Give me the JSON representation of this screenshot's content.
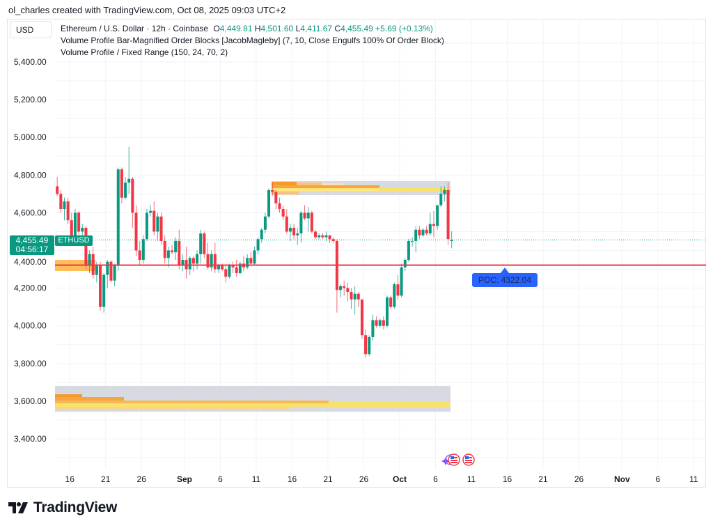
{
  "credit": "ol_charles created with TradingView.com, Oct 08, 2025 09:03 UTC+2",
  "currency_button": "USD",
  "legend": {
    "symbol": "Ethereum / U.S. Dollar · 12h · Coinbase",
    "o_label": "O",
    "o": "4,449.81",
    "h_label": "H",
    "h": "4,501.60",
    "l_label": "L",
    "l": "4,411.67",
    "c_label": "C",
    "c": "4,455.49",
    "change": "+5.69 (+0.13%)",
    "indicator1": "Volume Profile Bar-Magnified Order Blocks [JacobMagleby] (7, 10, Close Engulfs 100% Of Order Block)",
    "indicator2": "Volume Profile / Fixed Range (150, 24, 70, 2)"
  },
  "price_label": {
    "price": "4,455.49",
    "countdown": "04:56:17",
    "symbol": "ETHUSD"
  },
  "poc_label": "POC: 4322.04",
  "logo_text": "TradingView",
  "colors": {
    "up": "#089981",
    "down": "#f23645",
    "poc": "#f23645",
    "poc_label": "#2962ff",
    "zone": "#d1d4dc",
    "profile_orange": "#f59a2a",
    "profile_yellow": "#f7e26b"
  },
  "icons": [
    "sparkle-icon",
    "us-flag-event-icon",
    "us-flag-event-icon"
  ],
  "chart_data": {
    "type": "candlestick",
    "interval": "12h",
    "start": "2025-08-14",
    "yticks": [
      "5,400.00",
      "5,200.00",
      "5,000.00",
      "4,800.00",
      "4,600.00",
      "4,400.00",
      "4,200.00",
      "4,000.00",
      "3,800.00",
      "3,600.00",
      "3,400.00"
    ],
    "ytick_values": [
      5400,
      5200,
      5000,
      4800,
      4600,
      4400,
      4200,
      4000,
      3800,
      3600,
      3400
    ],
    "ylim": [
      3270,
      5500
    ],
    "xticks": [
      {
        "label": "16",
        "date": "2025-08-16"
      },
      {
        "label": "21",
        "date": "2025-08-21"
      },
      {
        "label": "26",
        "date": "2025-08-26"
      },
      {
        "label": "Sep",
        "date": "2025-09-01",
        "bold": true
      },
      {
        "label": "6",
        "date": "2025-09-06"
      },
      {
        "label": "11",
        "date": "2025-09-11"
      },
      {
        "label": "16",
        "date": "2025-09-16"
      },
      {
        "label": "21",
        "date": "2025-09-21"
      },
      {
        "label": "26",
        "date": "2025-09-26"
      },
      {
        "label": "Oct",
        "date": "2025-10-01",
        "bold": true
      },
      {
        "label": "6",
        "date": "2025-10-06"
      },
      {
        "label": "11",
        "date": "2025-10-11"
      },
      {
        "label": "16",
        "date": "2025-10-16"
      },
      {
        "label": "21",
        "date": "2025-10-21"
      },
      {
        "label": "26",
        "date": "2025-10-26"
      },
      {
        "label": "Nov",
        "date": "2025-11-01",
        "bold": true
      },
      {
        "label": "6",
        "date": "2025-11-06"
      },
      {
        "label": "11",
        "date": "2025-11-11"
      }
    ],
    "grid": true,
    "poc": 4322.04,
    "last_price": 4455.49,
    "order_blocks": [
      {
        "top": 4768,
        "bottom": 4694,
        "from": "2025-09-13",
        "to": "2025-10-08"
      },
      {
        "top": 3681,
        "bottom": 3544,
        "from": "2025-08-14",
        "to": "2025-10-08"
      },
      {
        "top": 4350,
        "bottom": 4291,
        "from": "2025-08-14",
        "to": "2025-08-19"
      }
    ],
    "ohlc": [
      [
        4740,
        4790,
        4690,
        4700
      ],
      [
        4700,
        4720,
        4600,
        4620
      ],
      [
        4620,
        4680,
        4560,
        4660
      ],
      [
        4660,
        4680,
        4540,
        4560
      ],
      [
        4560,
        4600,
        4430,
        4460
      ],
      [
        4460,
        4620,
        4450,
        4600
      ],
      [
        4600,
        4610,
        4480,
        4500
      ],
      [
        4500,
        4540,
        4470,
        4520
      ],
      [
        4520,
        4530,
        4300,
        4320
      ],
      [
        4320,
        4400,
        4280,
        4380
      ],
      [
        4380,
        4420,
        4250,
        4270
      ],
      [
        4270,
        4340,
        4230,
        4320
      ],
      [
        4320,
        4340,
        4080,
        4100
      ],
      [
        4100,
        4280,
        4070,
        4270
      ],
      [
        4270,
        4350,
        4200,
        4340
      ],
      [
        4340,
        4350,
        4230,
        4240
      ],
      [
        4240,
        4330,
        4210,
        4320
      ],
      [
        4320,
        4840,
        4290,
        4830
      ],
      [
        4830,
        4840,
        4650,
        4680
      ],
      [
        4680,
        4790,
        4670,
        4760
      ],
      [
        4760,
        4950,
        4700,
        4780
      ],
      [
        4780,
        4790,
        4520,
        4600
      ],
      [
        4600,
        4640,
        4370,
        4400
      ],
      [
        4400,
        4450,
        4320,
        4350
      ],
      [
        4350,
        4480,
        4330,
        4460
      ],
      [
        4460,
        4620,
        4450,
        4600
      ],
      [
        4600,
        4640,
        4580,
        4610
      ],
      [
        4610,
        4660,
        4480,
        4500
      ],
      [
        4500,
        4600,
        4450,
        4580
      ],
      [
        4580,
        4600,
        4430,
        4450
      ],
      [
        4450,
        4480,
        4330,
        4360
      ],
      [
        4360,
        4420,
        4310,
        4400
      ],
      [
        4400,
        4430,
        4380,
        4390
      ],
      [
        4390,
        4470,
        4350,
        4450
      ],
      [
        4450,
        4510,
        4300,
        4320
      ],
      [
        4320,
        4380,
        4290,
        4350
      ],
      [
        4350,
        4420,
        4250,
        4300
      ],
      [
        4300,
        4370,
        4270,
        4360
      ],
      [
        4360,
        4370,
        4290,
        4330
      ],
      [
        4330,
        4400,
        4300,
        4380
      ],
      [
        4380,
        4510,
        4330,
        4490
      ],
      [
        4490,
        4500,
        4360,
        4380
      ],
      [
        4380,
        4440,
        4300,
        4310
      ],
      [
        4310,
        4400,
        4290,
        4380
      ],
      [
        4380,
        4440,
        4280,
        4300
      ],
      [
        4300,
        4330,
        4280,
        4320
      ],
      [
        4320,
        4330,
        4290,
        4300
      ],
      [
        4300,
        4320,
        4230,
        4260
      ],
      [
        4260,
        4330,
        4250,
        4320
      ],
      [
        4320,
        4340,
        4280,
        4310
      ],
      [
        4310,
        4350,
        4260,
        4280
      ],
      [
        4280,
        4340,
        4270,
        4330
      ],
      [
        4330,
        4370,
        4290,
        4310
      ],
      [
        4310,
        4380,
        4300,
        4360
      ],
      [
        4360,
        4390,
        4320,
        4330
      ],
      [
        4330,
        4420,
        4320,
        4400
      ],
      [
        4400,
        4470,
        4380,
        4460
      ],
      [
        4460,
        4520,
        4440,
        4510
      ],
      [
        4510,
        4600,
        4490,
        4580
      ],
      [
        4580,
        4730,
        4570,
        4720
      ],
      [
        4720,
        4760,
        4690,
        4710
      ],
      [
        4710,
        4720,
        4620,
        4650
      ],
      [
        4650,
        4680,
        4600,
        4620
      ],
      [
        4620,
        4640,
        4560,
        4580
      ],
      [
        4580,
        4620,
        4490,
        4500
      ],
      [
        4500,
        4540,
        4450,
        4520
      ],
      [
        4520,
        4540,
        4460,
        4480
      ],
      [
        4480,
        4520,
        4430,
        4490
      ],
      [
        4490,
        4610,
        4440,
        4600
      ],
      [
        4600,
        4640,
        4560,
        4570
      ],
      [
        4570,
        4630,
        4500,
        4600
      ],
      [
        4600,
        4610,
        4490,
        4500
      ],
      [
        4500,
        4510,
        4460,
        4470
      ],
      [
        4470,
        4490,
        4460,
        4480
      ],
      [
        4480,
        4490,
        4460,
        4470
      ],
      [
        4470,
        4500,
        4450,
        4480
      ],
      [
        4480,
        4480,
        4440,
        4460
      ],
      [
        4460,
        4470,
        4440,
        4450
      ],
      [
        4450,
        4460,
        4070,
        4190
      ],
      [
        4190,
        4220,
        4150,
        4210
      ],
      [
        4210,
        4240,
        4160,
        4200
      ],
      [
        4200,
        4230,
        4130,
        4180
      ],
      [
        4180,
        4200,
        4090,
        4140
      ],
      [
        4140,
        4210,
        4060,
        4170
      ],
      [
        4170,
        4180,
        4100,
        4140
      ],
      [
        4140,
        4140,
        3930,
        3950
      ],
      [
        3950,
        3980,
        3830,
        3850
      ],
      [
        3850,
        3950,
        3840,
        3940
      ],
      [
        3940,
        4060,
        3920,
        4030
      ],
      [
        4030,
        4050,
        3990,
        4000
      ],
      [
        4000,
        4040,
        3990,
        4030
      ],
      [
        4030,
        4050,
        3980,
        4000
      ],
      [
        4000,
        4160,
        3990,
        4150
      ],
      [
        4150,
        4160,
        4090,
        4100
      ],
      [
        4100,
        4230,
        4090,
        4220
      ],
      [
        4220,
        4270,
        4140,
        4160
      ],
      [
        4160,
        4330,
        4150,
        4310
      ],
      [
        4310,
        4360,
        4290,
        4350
      ],
      [
        4350,
        4460,
        4340,
        4450
      ],
      [
        4450,
        4470,
        4420,
        4450
      ],
      [
        4450,
        4530,
        4390,
        4510
      ],
      [
        4510,
        4530,
        4460,
        4480
      ],
      [
        4480,
        4520,
        4470,
        4510
      ],
      [
        4510,
        4530,
        4480,
        4490
      ],
      [
        4490,
        4600,
        4480,
        4540
      ],
      [
        4540,
        4610,
        4470,
        4530
      ],
      [
        4530,
        4640,
        4510,
        4640
      ],
      [
        4640,
        4740,
        4630,
        4700
      ],
      [
        4700,
        4740,
        4660,
        4720
      ],
      [
        4720,
        4760,
        4430,
        4460
      ],
      [
        4449.81,
        4501.6,
        4411.67,
        4455.49
      ]
    ]
  }
}
